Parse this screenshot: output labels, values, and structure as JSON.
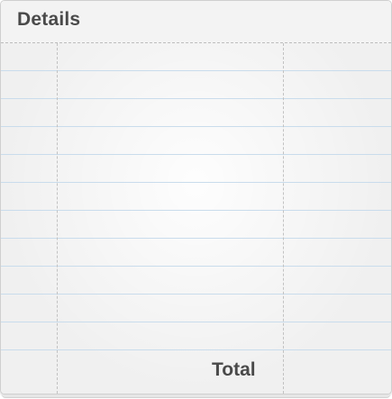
{
  "header": {
    "title": "Details"
  },
  "footer": {
    "total_label": "Total"
  },
  "colors": {
    "paper": "#f2f2f2",
    "rule_line": "#c9dcec",
    "divider": "#c2c2c2",
    "text": "#4a4a4a"
  }
}
